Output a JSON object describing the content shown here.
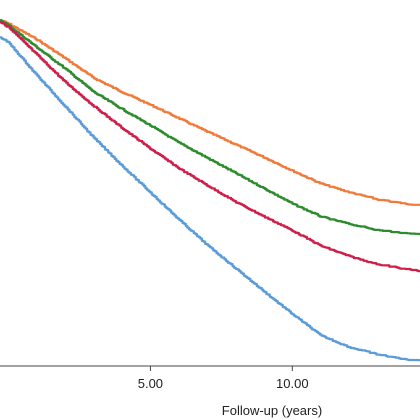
{
  "chart_data": {
    "type": "line",
    "title": "",
    "xlabel": "Follow-up (years)",
    "ylabel": "",
    "xlim": [
      -0.3,
      14.5
    ],
    "ylim": [
      0.4,
      1.0
    ],
    "x_ticks": [
      {
        "value": 5,
        "label": "5.00"
      },
      {
        "value": 10,
        "label": "10.00"
      }
    ],
    "grid": false,
    "legend": "none",
    "series": [
      {
        "color": "#f07a3a",
        "x": [
          -0.3,
          0,
          1,
          2,
          3,
          4,
          5,
          6,
          7,
          8,
          9,
          10,
          11,
          12,
          13,
          14,
          14.5
        ],
        "y": [
          0.967,
          0.961,
          0.935,
          0.904,
          0.872,
          0.849,
          0.828,
          0.806,
          0.784,
          0.763,
          0.742,
          0.72,
          0.699,
          0.685,
          0.673,
          0.666,
          0.664
        ]
      },
      {
        "color": "#2e8b2e",
        "x": [
          -0.3,
          0,
          1,
          2,
          3,
          4,
          5,
          6,
          7,
          8,
          9,
          10,
          11,
          12,
          13,
          14,
          14.5
        ],
        "y": [
          0.967,
          0.958,
          0.922,
          0.887,
          0.849,
          0.821,
          0.794,
          0.766,
          0.741,
          0.716,
          0.691,
          0.666,
          0.645,
          0.633,
          0.623,
          0.618,
          0.617
        ]
      },
      {
        "color": "#cc1f4a",
        "x": [
          -0.3,
          0,
          1,
          2,
          3,
          4,
          5,
          6,
          7,
          8,
          9,
          10,
          11,
          12,
          13,
          14,
          14.5
        ],
        "y": [
          0.964,
          0.955,
          0.91,
          0.865,
          0.826,
          0.79,
          0.756,
          0.724,
          0.696,
          0.669,
          0.645,
          0.622,
          0.597,
          0.58,
          0.567,
          0.559,
          0.556
        ]
      },
      {
        "color": "#5a9bd8",
        "x": [
          -0.3,
          0,
          1,
          2,
          3,
          4,
          5,
          6,
          7,
          8,
          9,
          10,
          11,
          12,
          13,
          14,
          14.5
        ],
        "y": [
          0.939,
          0.93,
          0.876,
          0.825,
          0.774,
          0.728,
          0.684,
          0.64,
          0.598,
          0.56,
          0.522,
          0.485,
          0.45,
          0.431,
          0.419,
          0.411,
          0.41
        ]
      }
    ]
  }
}
